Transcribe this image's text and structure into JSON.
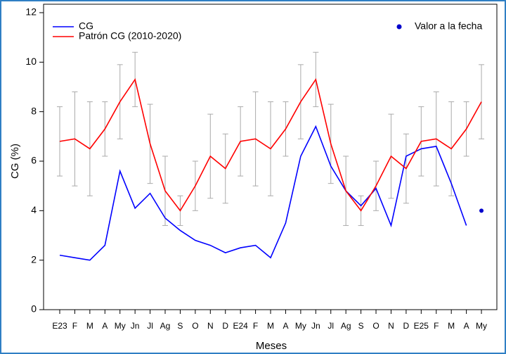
{
  "chart_data": {
    "type": "line",
    "x_label": "Meses",
    "y_label": "CG (%)",
    "categories": [
      "E23",
      "F",
      "M",
      "A",
      "My",
      "Jn",
      "Jl",
      "Ag",
      "S",
      "O",
      "N",
      "D",
      "E24",
      "F",
      "M",
      "A",
      "My",
      "Jn",
      "Jl",
      "Ag",
      "S",
      "O",
      "N",
      "D",
      "E25",
      "F",
      "M",
      "A",
      "My"
    ],
    "ylim": [
      0,
      12
    ],
    "yticks": [
      0,
      2,
      4,
      6,
      8,
      10,
      12
    ],
    "series": [
      {
        "name": "CG",
        "color": "#0000ff",
        "style": "line",
        "values": [
          2.2,
          2.1,
          2.0,
          2.6,
          5.6,
          4.1,
          4.7,
          3.7,
          3.2,
          2.8,
          2.6,
          2.3,
          2.5,
          2.6,
          2.1,
          3.5,
          6.2,
          7.4,
          5.8,
          4.8,
          4.2,
          4.9,
          3.4,
          6.2,
          6.5,
          6.6,
          5.1,
          3.4,
          null
        ]
      },
      {
        "name": "Patrón CG (2010-2020)",
        "color": "#ff0000",
        "style": "line",
        "error_color": "#aaaaaa",
        "values": [
          6.8,
          6.9,
          6.5,
          7.3,
          8.4,
          9.3,
          6.7,
          4.8,
          4.0,
          5.0,
          6.2,
          5.7,
          6.8,
          6.9,
          6.5,
          7.3,
          8.4,
          9.3,
          6.7,
          4.8,
          4.0,
          5.0,
          6.2,
          5.7,
          6.8,
          6.9,
          6.5,
          7.3,
          8.4
        ],
        "low": [
          5.4,
          5.0,
          4.6,
          6.2,
          6.9,
          8.2,
          5.1,
          3.4,
          3.4,
          4.0,
          4.5,
          4.3,
          5.4,
          5.0,
          4.6,
          6.2,
          6.9,
          8.2,
          5.1,
          3.4,
          3.4,
          4.0,
          4.5,
          4.3,
          5.4,
          5.0,
          4.6,
          6.2,
          6.9
        ],
        "high": [
          8.2,
          8.8,
          8.4,
          8.4,
          9.9,
          10.4,
          8.3,
          6.2,
          4.6,
          6.0,
          7.9,
          7.1,
          8.2,
          8.8,
          8.4,
          8.4,
          9.9,
          10.4,
          8.3,
          6.2,
          4.6,
          6.0,
          7.9,
          7.1,
          8.2,
          8.8,
          8.4,
          8.4,
          9.9
        ]
      },
      {
        "name": "Valor a la fecha",
        "color": "#0000cc",
        "style": "point",
        "values": [
          null,
          null,
          null,
          null,
          null,
          null,
          null,
          null,
          null,
          null,
          null,
          null,
          null,
          null,
          null,
          null,
          null,
          null,
          null,
          null,
          null,
          null,
          null,
          null,
          null,
          null,
          null,
          null,
          4.0
        ]
      }
    ]
  }
}
